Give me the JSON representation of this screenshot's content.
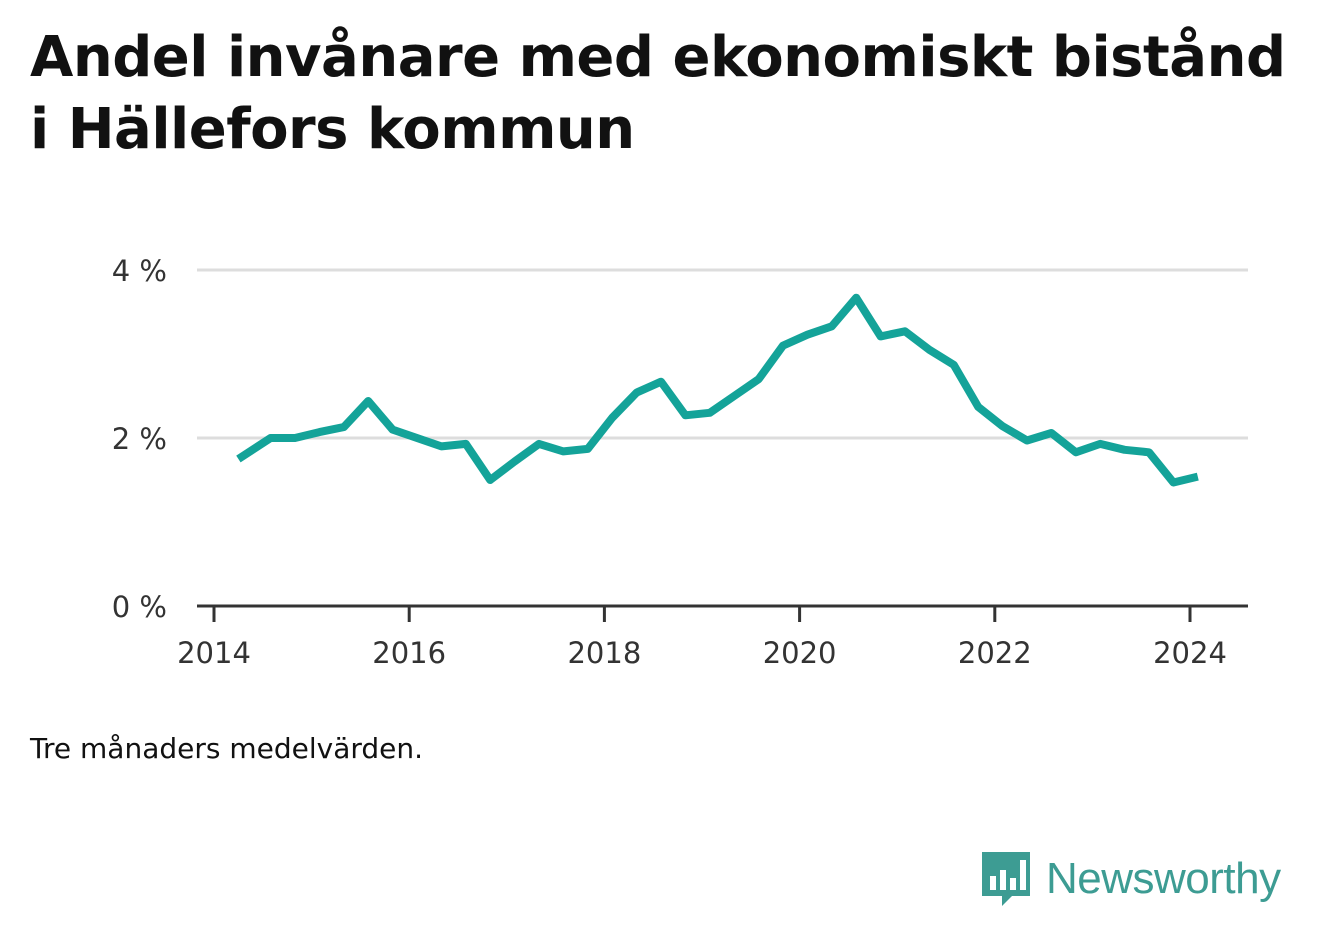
{
  "chart_data": {
    "type": "line",
    "title": "Andel invånare med ekonomiskt bistånd i Hällefors kommun",
    "note": "Tre månaders medelvärden.",
    "x_ticks": [
      "2014",
      "2016",
      "2018",
      "2020",
      "2022",
      "2024"
    ],
    "y_ticks": [
      "0 %",
      "2 %",
      "4 %"
    ],
    "ylim": [
      0,
      4
    ],
    "xlim": [
      2014,
      2024.3
    ],
    "grid": true,
    "line_color": "#14a399",
    "series": [
      {
        "x": [
          2014.25,
          2014.58,
          2014.83,
          2015.08,
          2015.33,
          2015.58,
          2015.83,
          2016.08,
          2016.33,
          2016.58,
          2016.83,
          2017.08,
          2017.33,
          2017.58,
          2017.83,
          2018.08,
          2018.33,
          2018.58,
          2018.83,
          2019.08,
          2019.33,
          2019.58,
          2019.83,
          2020.08,
          2020.33,
          2020.58,
          2020.83,
          2021.08,
          2021.33,
          2021.58,
          2021.83,
          2022.08,
          2022.33,
          2022.58,
          2022.83,
          2023.08,
          2023.33,
          2023.58,
          2023.83,
          2024.08
        ],
        "values": [
          1.75,
          2.0,
          2.0,
          2.07,
          2.13,
          2.44,
          2.1,
          2.0,
          1.9,
          1.93,
          1.5,
          1.72,
          1.93,
          1.84,
          1.87,
          2.24,
          2.54,
          2.67,
          2.27,
          2.3,
          2.5,
          2.7,
          3.1,
          3.23,
          3.33,
          3.67,
          3.21,
          3.27,
          3.05,
          2.87,
          2.37,
          2.14,
          1.97,
          2.06,
          1.83,
          1.93,
          1.86,
          1.83,
          1.47,
          1.54
        ]
      }
    ]
  },
  "brand": {
    "name": "Newsworthy",
    "color": "#3d9c93"
  }
}
